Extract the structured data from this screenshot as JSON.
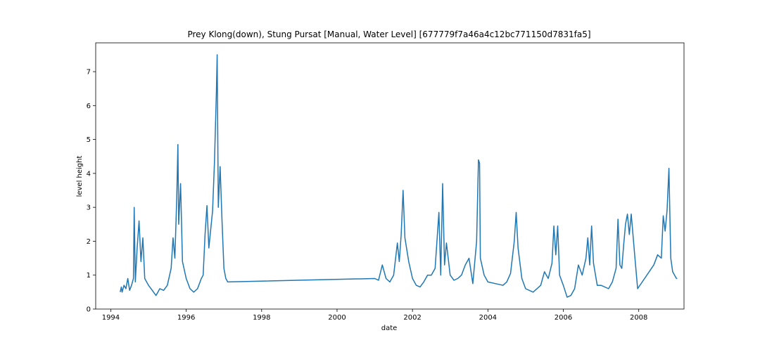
{
  "chart_data": {
    "type": "line",
    "title": "Prey Klong(down), Stung Pursat [Manual, Water Level] [677779f7a46a4c12bc771150d7831fa5]",
    "xlabel": "date",
    "ylabel": "level height",
    "xlim": [
      1993.6,
      2009.2
    ],
    "ylim": [
      0,
      7.85
    ],
    "x_ticks": [
      1994,
      1996,
      1998,
      2000,
      2002,
      2004,
      2006,
      2008
    ],
    "x_tick_labels": [
      "1994",
      "1996",
      "1998",
      "2000",
      "2002",
      "2004",
      "2006",
      "2008"
    ],
    "y_ticks": [
      0,
      1,
      2,
      3,
      4,
      5,
      6,
      7
    ],
    "y_tick_labels": [
      "0",
      "1",
      "2",
      "3",
      "4",
      "5",
      "6",
      "7"
    ],
    "grid": false,
    "legend": "none",
    "line_color": "#1f77b4",
    "series": [
      {
        "x": [
          1994.25,
          1994.28,
          1994.3,
          1994.35,
          1994.4,
          1994.45,
          1994.5,
          1994.55,
          1994.6,
          1994.62,
          1994.65,
          1994.7,
          1994.75,
          1994.8,
          1994.85,
          1994.9,
          1995.0,
          1995.1,
          1995.2,
          1995.3,
          1995.4,
          1995.5,
          1995.6,
          1995.65,
          1995.7,
          1995.75,
          1995.78,
          1995.8,
          1995.85,
          1995.9,
          1996.0,
          1996.1,
          1996.2,
          1996.3,
          1996.4,
          1996.45,
          1996.5,
          1996.55,
          1996.6,
          1996.7,
          1996.75,
          1996.8,
          1996.82,
          1996.85,
          1996.9,
          1996.95,
          1997.0,
          1997.05,
          1997.1,
          2001.0,
          2001.1,
          2001.2,
          2001.3,
          2001.4,
          2001.5,
          2001.6,
          2001.65,
          2001.7,
          2001.75,
          2001.8,
          2001.9,
          2002.0,
          2002.1,
          2002.2,
          2002.3,
          2002.4,
          2002.5,
          2002.6,
          2002.7,
          2002.75,
          2002.8,
          2002.85,
          2002.9,
          2003.0,
          2003.1,
          2003.2,
          2003.3,
          2003.4,
          2003.5,
          2003.6,
          2003.7,
          2003.75,
          2003.78,
          2003.8,
          2003.9,
          2004.0,
          2004.2,
          2004.4,
          2004.5,
          2004.6,
          2004.7,
          2004.75,
          2004.8,
          2004.9,
          2005.0,
          2005.2,
          2005.4,
          2005.5,
          2005.6,
          2005.7,
          2005.75,
          2005.8,
          2005.85,
          2005.9,
          2006.0,
          2006.1,
          2006.2,
          2006.3,
          2006.4,
          2006.5,
          2006.6,
          2006.65,
          2006.7,
          2006.75,
          2006.8,
          2006.9,
          2007.0,
          2007.2,
          2007.3,
          2007.4,
          2007.45,
          2007.5,
          2007.55,
          2007.6,
          2007.65,
          2007.7,
          2007.75,
          2007.8,
          2007.9,
          2007.97,
          2008.4,
          2008.5,
          2008.6,
          2008.65,
          2008.7,
          2008.75,
          2008.8,
          2008.83,
          2008.85,
          2008.9,
          2008.95,
          2009.0,
          2009.02
        ],
        "y": [
          0.5,
          0.65,
          0.5,
          0.7,
          0.6,
          0.9,
          0.55,
          0.7,
          0.9,
          3.0,
          0.8,
          1.8,
          2.6,
          1.4,
          2.1,
          0.9,
          0.7,
          0.55,
          0.4,
          0.6,
          0.55,
          0.7,
          1.2,
          2.1,
          1.5,
          3.3,
          4.85,
          2.5,
          3.7,
          1.4,
          0.9,
          0.6,
          0.5,
          0.6,
          0.9,
          1.0,
          2.2,
          3.05,
          1.8,
          2.9,
          4.35,
          6.4,
          7.5,
          3.0,
          4.2,
          2.6,
          1.2,
          0.9,
          0.8,
          0.9,
          0.85,
          1.3,
          0.9,
          0.8,
          1.0,
          1.95,
          1.4,
          2.2,
          3.5,
          2.1,
          1.4,
          0.9,
          0.7,
          0.65,
          0.8,
          1.0,
          1.0,
          1.2,
          2.85,
          1.0,
          3.7,
          1.3,
          1.95,
          1.0,
          0.85,
          0.9,
          1.0,
          1.3,
          1.5,
          0.75,
          2.0,
          4.4,
          4.3,
          1.5,
          1.0,
          0.8,
          0.75,
          0.7,
          0.8,
          1.05,
          2.0,
          2.85,
          1.8,
          0.9,
          0.6,
          0.5,
          0.7,
          1.1,
          0.9,
          1.35,
          2.45,
          1.6,
          2.45,
          1.0,
          0.7,
          0.35,
          0.4,
          0.6,
          1.3,
          1.0,
          1.5,
          2.1,
          1.3,
          2.45,
          1.35,
          0.7,
          0.7,
          0.6,
          0.8,
          1.2,
          2.65,
          1.3,
          1.2,
          1.9,
          2.5,
          2.8,
          2.2,
          2.8,
          1.5,
          0.6,
          1.3,
          1.6,
          1.5,
          2.75,
          2.3,
          2.9,
          4.15,
          2.5,
          1.5,
          1.1,
          1.0,
          0.9,
          0.9
        ]
      }
    ]
  }
}
